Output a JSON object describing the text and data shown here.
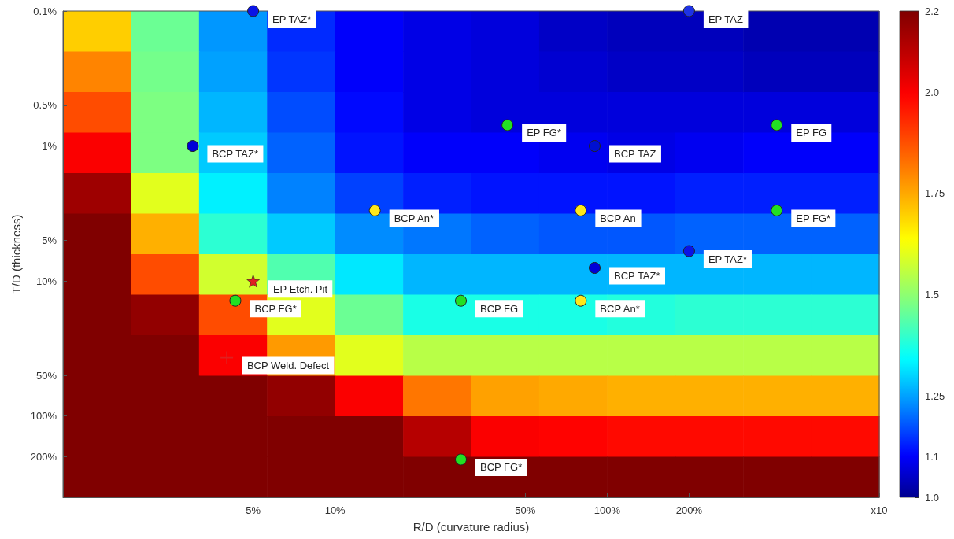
{
  "chart_data": [
    {
      "type": "heatmap",
      "categories": [
        null,
        null,
        null,
        null,
        null,
        null,
        null,
        null,
        null,
        null,
        null,
        null
      ],
      "y_categories": [
        null,
        null,
        null,
        null,
        null,
        null,
        null,
        null,
        null,
        null,
        null,
        null
      ],
      "clim": [
        1,
        2.2
      ],
      "cticks": [
        {
          "value": 1,
          "label": "1.0"
        },
        1.1,
        1.25,
        1.5,
        1.75,
        {
          "value": 2,
          "label": "2.0"
        },
        2.2
      ],
      "cells": [
        [
          1.7,
          1.46,
          1.24,
          1.14,
          1.1,
          1.08,
          1.07,
          1.05,
          1.04,
          1.04,
          1.03,
          1.03
        ],
        [
          1.8,
          1.47,
          1.25,
          1.15,
          1.1,
          1.08,
          1.07,
          1.06,
          1.05,
          1.05,
          1.04,
          1.04
        ],
        [
          1.88,
          1.48,
          1.27,
          1.17,
          1.11,
          1.08,
          1.07,
          1.07,
          1.07,
          1.07,
          1.07,
          1.07
        ],
        [
          2.0,
          1.48,
          1.29,
          1.19,
          1.12,
          1.1,
          1.1,
          1.09,
          1.08,
          1.09,
          1.1,
          1.1
        ],
        [
          2.15,
          1.6,
          1.33,
          1.22,
          1.16,
          1.13,
          1.12,
          1.12,
          1.12,
          1.13,
          1.13,
          1.13
        ],
        [
          2.2,
          1.74,
          1.39,
          1.29,
          1.23,
          1.21,
          1.19,
          1.18,
          1.18,
          1.19,
          1.19,
          1.19
        ],
        [
          2.2,
          1.88,
          1.58,
          1.43,
          1.32,
          1.27,
          1.27,
          1.27,
          1.27,
          1.27,
          1.27,
          1.27
        ],
        [
          2.2,
          2.17,
          1.88,
          1.6,
          1.46,
          1.37,
          1.37,
          1.37,
          1.38,
          1.39,
          1.39,
          1.39
        ],
        [
          2.2,
          2.2,
          2.0,
          1.77,
          1.6,
          1.55,
          1.55,
          1.55,
          1.55,
          1.55,
          1.55,
          1.55
        ],
        [
          2.2,
          2.2,
          2.2,
          2.17,
          2.0,
          1.82,
          1.76,
          1.75,
          1.74,
          1.74,
          1.74,
          1.74
        ],
        [
          2.2,
          2.2,
          2.2,
          2.2,
          2.2,
          2.11,
          2.0,
          1.99,
          1.98,
          1.98,
          1.98,
          1.98
        ],
        [
          2.2,
          2.2,
          2.2,
          2.2,
          2.2,
          2.2,
          2.2,
          2.2,
          2.2,
          2.2,
          2.2,
          2.2
        ]
      ]
    },
    {
      "type": "scatter",
      "xlabel": "R/D (curvature radius)",
      "ylabel": "T/D (thickness)",
      "log": "xy",
      "xlim": [
        1,
        1000
      ],
      "ylim": [
        400,
        0.1
      ],
      "xticks": [
        {
          "value": 5,
          "label": "5%"
        },
        {
          "value": 10,
          "label": "10%"
        },
        {
          "value": 50,
          "label": "50%"
        },
        {
          "value": 100,
          "label": "100%"
        },
        {
          "value": 200,
          "label": "200%"
        },
        {
          "value": 1000,
          "label": "x10"
        }
      ],
      "yticks": [
        {
          "value": 0.1,
          "label": "0.1%"
        },
        {
          "value": 0.5,
          "label": "0.5%"
        },
        {
          "value": 1,
          "label": "1%"
        },
        {
          "value": 5,
          "label": "5%"
        },
        {
          "value": 10,
          "label": "10%"
        },
        {
          "value": 50,
          "label": "50%"
        },
        {
          "value": 100,
          "label": "100%"
        },
        {
          "value": 200,
          "label": "200%"
        }
      ],
      "series": [
        {
          "name": "EP TAZ*",
          "color": "#0a14e6",
          "marker": "circle",
          "x": [
            5,
            200
          ],
          "values": [
            0.1,
            6
          ]
        },
        {
          "name": "EP TAZ",
          "color": "#1e32e6",
          "marker": "circle",
          "x": [
            200
          ],
          "values": [
            0.1
          ]
        },
        {
          "name": "EP FG*",
          "color": "#22e022",
          "marker": "circle",
          "x": [
            43,
            420
          ],
          "values": [
            0.7,
            3
          ]
        },
        {
          "name": "EP FG",
          "color": "#22e022",
          "marker": "circle",
          "x": [
            420
          ],
          "values": [
            0.7
          ]
        },
        {
          "name": "BCP TAZ*",
          "color": "#0000d8",
          "marker": "circle",
          "x": [
            3,
            90
          ],
          "values": [
            1,
            8
          ]
        },
        {
          "name": "BCP TAZ",
          "color": "#0010d0",
          "marker": "circle",
          "x": [
            90
          ],
          "values": [
            1
          ]
        },
        {
          "name": "BCP An*",
          "color": "#ffe81a",
          "marker": "circle",
          "x": [
            14,
            80
          ],
          "values": [
            3,
            14
          ]
        },
        {
          "name": "BCP An",
          "color": "#ffe81a",
          "marker": "circle",
          "x": [
            80
          ],
          "values": [
            3
          ]
        },
        {
          "name": "EP Etch. Pit",
          "color": "#e02020",
          "marker": "star",
          "x": [
            5
          ],
          "values": [
            10
          ]
        },
        {
          "name": "BCP FG*",
          "color": "#22e022",
          "marker": "circle",
          "x": [
            4.3,
            29
          ],
          "values": [
            14,
            210
          ]
        },
        {
          "name": "BCP FG",
          "color": "#22e022",
          "marker": "circle",
          "x": [
            29
          ],
          "values": [
            14
          ]
        },
        {
          "name": "BCP Weld. Defect",
          "color": "#e02020",
          "marker": "cross",
          "x": [
            4
          ],
          "values": [
            37
          ]
        }
      ]
    }
  ]
}
